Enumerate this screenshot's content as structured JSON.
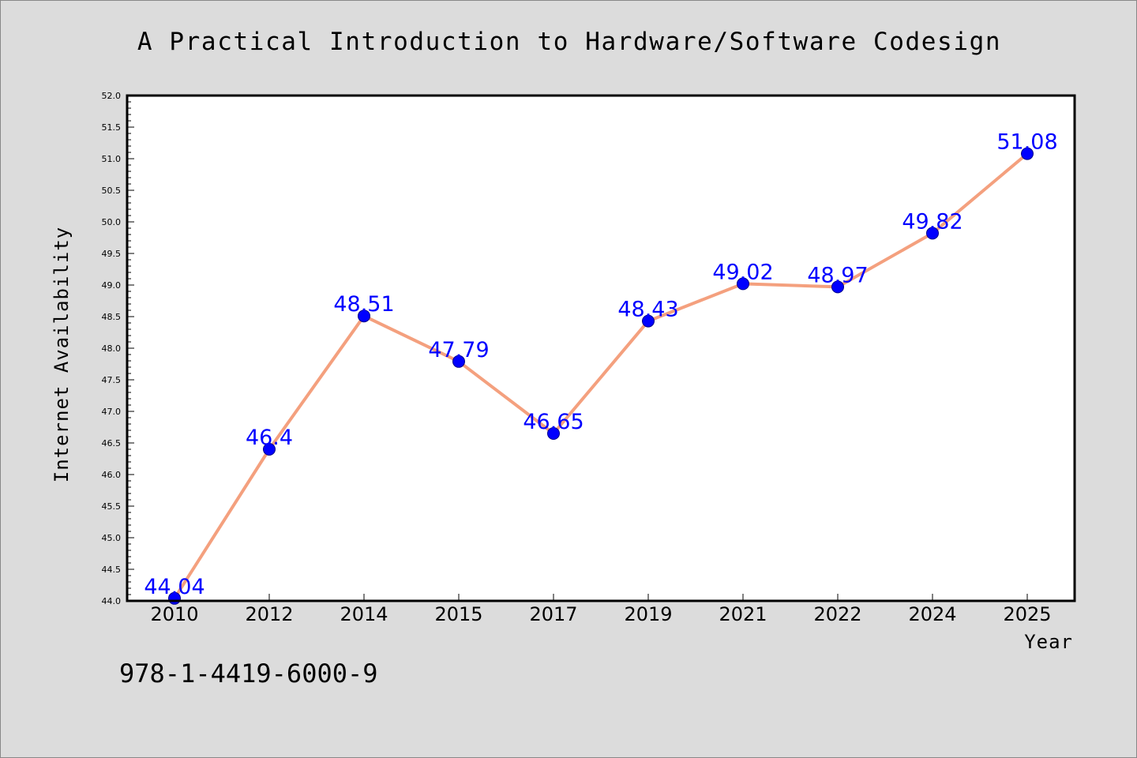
{
  "title": "A Practical Introduction to Hardware/Software Codesign",
  "isbn": "978-1-4419-6000-9",
  "chart_data": {
    "type": "line",
    "title": "A Practical Introduction to Hardware/Software Codesign",
    "xlabel": "Year",
    "ylabel": "Internet Availability",
    "categories": [
      "2010",
      "2012",
      "2014",
      "2015",
      "2017",
      "2019",
      "2021",
      "2022",
      "2024",
      "2025"
    ],
    "values": [
      44.04,
      46.4,
      48.51,
      47.79,
      46.65,
      48.43,
      49.02,
      48.97,
      49.82,
      51.08
    ],
    "data_labels": [
      "44.04",
      "46.4",
      "48.51",
      "47.79",
      "46.65",
      "48.43",
      "49.02",
      "48.97",
      "49.82",
      "51.08"
    ],
    "ylim": [
      44.0,
      52.0
    ],
    "ytick_step": 0.5,
    "yticks": [
      "44.0",
      "44.5",
      "45.0",
      "45.5",
      "46.0",
      "46.5",
      "47.0",
      "47.5",
      "48.0",
      "48.5",
      "49.0",
      "49.5",
      "50.0",
      "50.5",
      "51.0",
      "51.5",
      "52.0"
    ],
    "grid": false,
    "legend": "none",
    "colors": {
      "line": "#f4a07e",
      "marker": "#0000ff",
      "data_label": "#0000ff",
      "plot_background": "#ffffff",
      "figure_background": "#dcdcdc"
    }
  }
}
